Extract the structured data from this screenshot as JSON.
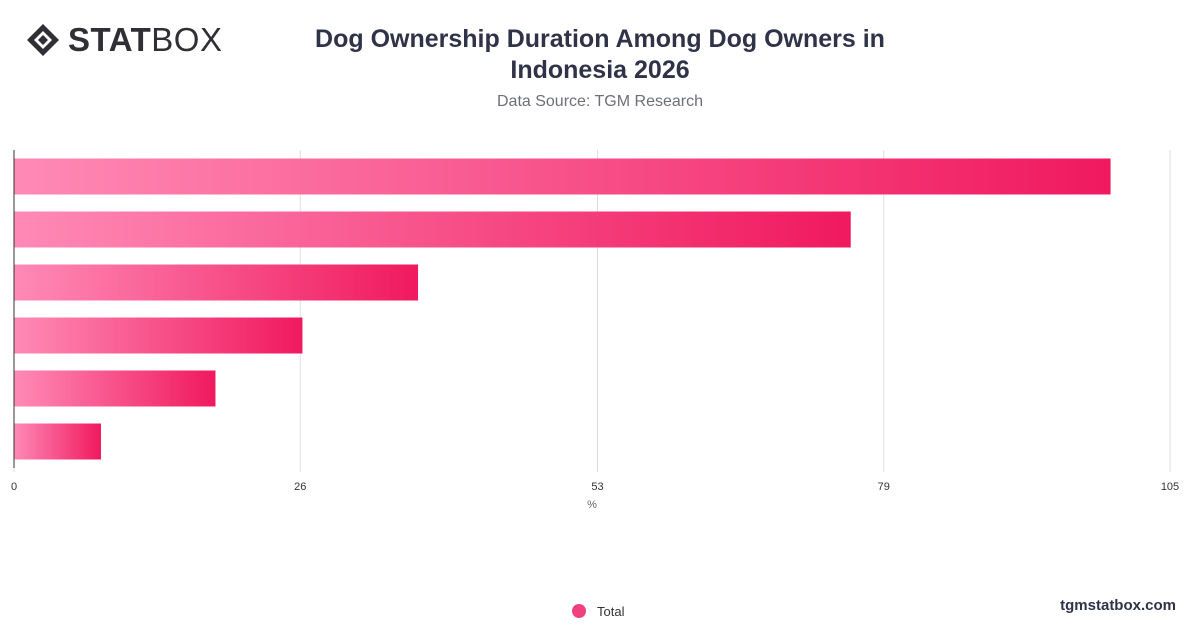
{
  "brand": {
    "logo_bold": "STAT",
    "logo_light": "BOX",
    "website": "tgmstatbox.com"
  },
  "colors": {
    "bar_start": "#ff8ab5",
    "bar_end": "#f0195f",
    "grid": "#dddddd",
    "axis": "#333333"
  },
  "chart_data": {
    "type": "bar",
    "orientation": "horizontal",
    "title": "Dog Ownership Duration Among Dog Owners in Indonesia 2026",
    "subtitle": "Data Source: TGM Research",
    "xlabel": "%",
    "ylabel": "",
    "xlim": [
      0,
      105
    ],
    "xticks": [
      0,
      26,
      53,
      79,
      105
    ],
    "grid": true,
    "legend": "bottom-center",
    "series": [
      {
        "name": "Total",
        "values": [
          99.6,
          76.0,
          36.7,
          26.2,
          18.3,
          7.9
        ]
      }
    ]
  }
}
